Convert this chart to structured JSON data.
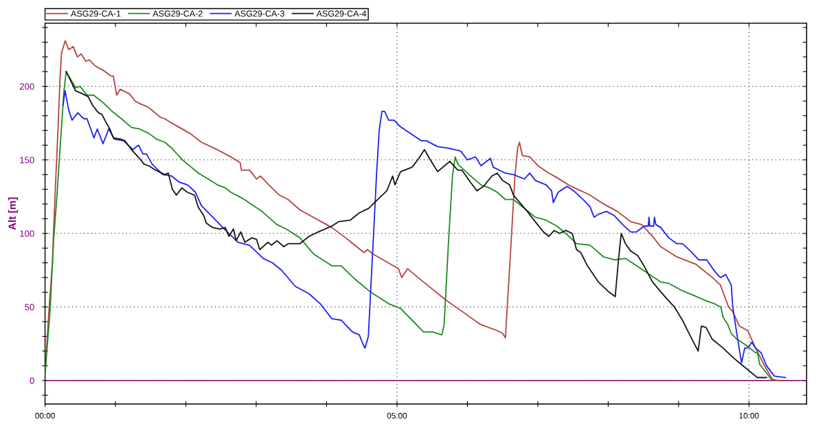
{
  "chart_data": {
    "type": "line",
    "ylabel": "Alt [m]",
    "xlim": [
      0,
      10.82
    ],
    "ylim": [
      -16,
      243
    ],
    "xticks": [
      {
        "value": 0,
        "label": "00:00"
      },
      {
        "value": 1,
        "label": null
      },
      {
        "value": 2,
        "label": null
      },
      {
        "value": 3,
        "label": null
      },
      {
        "value": 4,
        "label": null
      },
      {
        "value": 5,
        "label": "05:00"
      },
      {
        "value": 6,
        "label": null
      },
      {
        "value": 7,
        "label": null
      },
      {
        "value": 8,
        "label": null
      },
      {
        "value": 9,
        "label": null
      },
      {
        "value": 10,
        "label": "10:00"
      }
    ],
    "yticks": [
      {
        "value": -10,
        "label": null
      },
      0,
      {
        "value": 10,
        "label": null
      },
      {
        "value": 20,
        "label": null
      },
      {
        "value": 30,
        "label": null
      },
      {
        "value": 40,
        "label": null
      },
      50,
      {
        "value": 60,
        "label": null
      },
      {
        "value": 70,
        "label": null
      },
      {
        "value": 80,
        "label": null
      },
      {
        "value": 90,
        "label": null
      },
      100,
      {
        "value": 110,
        "label": null
      },
      {
        "value": 120,
        "label": null
      },
      {
        "value": 130,
        "label": null
      },
      {
        "value": 140,
        "label": null
      },
      150,
      {
        "value": 160,
        "label": null
      },
      {
        "value": 170,
        "label": null
      },
      {
        "value": 180,
        "label": null
      },
      {
        "value": 190,
        "label": null
      },
      200,
      {
        "value": 210,
        "label": null
      },
      {
        "value": 220,
        "label": null
      },
      {
        "value": 230,
        "label": null
      },
      {
        "value": 240,
        "label": null
      }
    ],
    "grid": true,
    "legend": "top left",
    "ref_lines": [
      {
        "axis": "y",
        "value": 0,
        "color": "#800080"
      }
    ],
    "series": [
      {
        "name": "ASG29-CA-1",
        "color": "#b4423e",
        "x": [
          0,
          0.056,
          0.105,
          0.12,
          0.154,
          0.186,
          0.211,
          0.235,
          0.287,
          0.336,
          0.4,
          0.46,
          0.514,
          0.58,
          0.628,
          0.71,
          0.823,
          0.937,
          0.97,
          1.018,
          1.067,
          1.197,
          1.279,
          1.36,
          1.458,
          1.539,
          1.636,
          1.7,
          1.8,
          2.06,
          2.22,
          2.445,
          2.638,
          2.677,
          2.773,
          2.79,
          2.907,
          3.004,
          3.06,
          3.18,
          3.33,
          3.455,
          3.62,
          4.075,
          4.27,
          4.53,
          4.58,
          4.66,
          5.02,
          5.067,
          5.15,
          5.376,
          5.685,
          5.864,
          6.19,
          6.42,
          6.5,
          6.54,
          6.62,
          6.675,
          6.714,
          6.74,
          6.78,
          6.887,
          7.003,
          7.157,
          7.27,
          7.435,
          7.743,
          7.936,
          8.129,
          8.32,
          8.476,
          8.63,
          8.746,
          8.977,
          9.247,
          9.479,
          9.594,
          9.71,
          9.767,
          9.864,
          9.98,
          10.095,
          10.21,
          10.33,
          10.4,
          10.52
        ],
        "values": [
          5,
          48,
          80,
          100,
          139,
          173,
          204,
          223,
          231,
          225,
          227,
          220,
          222,
          217,
          218,
          214,
          211,
          207,
          207,
          194,
          198,
          195,
          190,
          188,
          186,
          183,
          179,
          178,
          175,
          168,
          162,
          157,
          152,
          151,
          148,
          143,
          143,
          137,
          139,
          133,
          126,
          123,
          116,
          104,
          97,
          87,
          89,
          86,
          76,
          70,
          76,
          67,
          55,
          49,
          38,
          34,
          32,
          29,
          93,
          139,
          158,
          162,
          153,
          152,
          146,
          141,
          138,
          133,
          126,
          120,
          115,
          108,
          106,
          98,
          91,
          84,
          79,
          70,
          65,
          50,
          47,
          37,
          34,
          22,
          11,
          1,
          0,
          0
        ]
      },
      {
        "name": "ASG29-CA-2",
        "color": "#1f8a1f",
        "x": [
          0,
          0.072,
          0.121,
          0.17,
          0.202,
          0.235,
          0.267,
          0.3,
          0.433,
          0.498,
          0.596,
          0.69,
          0.823,
          0.953,
          1.084,
          1.23,
          1.343,
          1.474,
          1.587,
          1.7,
          1.8,
          1.95,
          2.18,
          2.45,
          2.56,
          2.638,
          2.8,
          3.08,
          3.294,
          3.425,
          3.62,
          3.815,
          4.075,
          4.206,
          4.4,
          4.628,
          4.889,
          5.05,
          5.214,
          5.376,
          5.506,
          5.636,
          5.67,
          5.73,
          5.788,
          5.826,
          5.866,
          6.0,
          6.193,
          6.31,
          6.424,
          6.54,
          6.655,
          6.81,
          6.964,
          7.12,
          7.27,
          7.396,
          7.55,
          7.743,
          7.936,
          8.09,
          8.245,
          8.437,
          8.59,
          8.746,
          8.86,
          9.055,
          9.209,
          9.4,
          9.517,
          9.6,
          9.633,
          9.7,
          9.748,
          9.83,
          9.96,
          10.09,
          10.12,
          10.153,
          10.25,
          10.33
        ],
        "values": [
          4,
          48,
          95,
          126,
          150,
          173,
          196,
          210,
          199,
          200,
          194,
          194,
          189,
          183,
          178,
          172,
          171,
          168,
          164,
          162,
          158,
          150,
          141,
          133,
          131,
          128,
          124,
          115,
          106,
          103,
          97,
          86,
          78,
          78,
          69,
          60,
          52,
          49,
          41,
          33,
          33,
          31,
          38,
          93,
          139,
          152,
          147,
          141,
          133,
          131,
          128,
          123,
          123,
          117,
          111,
          109,
          105,
          100,
          93,
          92,
          84,
          82,
          83,
          77,
          72,
          67,
          66,
          61,
          58,
          54,
          52,
          50,
          43,
          38,
          32,
          28,
          24,
          19,
          19,
          11,
          5,
          0
        ]
      },
      {
        "name": "ASG29-CA-3",
        "color": "#1f1ff0",
        "x": [
          0.254,
          0.285,
          0.336,
          0.384,
          0.466,
          0.547,
          0.596,
          0.694,
          0.742,
          0.823,
          0.905,
          0.986,
          1.116,
          1.246,
          1.328,
          1.392,
          1.441,
          1.523,
          1.674,
          1.8,
          1.9,
          2.026,
          2.137,
          2.22,
          2.384,
          2.547,
          2.742,
          2.904,
          3.1,
          3.23,
          3.36,
          3.555,
          3.75,
          3.913,
          4.075,
          4.206,
          4.368,
          4.465,
          4.514,
          4.546,
          4.593,
          4.63,
          4.67,
          4.708,
          4.747,
          4.786,
          4.824,
          4.882,
          4.959,
          5.036,
          5.19,
          5.344,
          5.42,
          5.577,
          5.73,
          5.905,
          6.0,
          6.116,
          6.193,
          6.328,
          6.367,
          6.54,
          6.655,
          6.81,
          6.887,
          6.964,
          7.12,
          7.196,
          7.22,
          7.29,
          7.32,
          7.416,
          7.51,
          7.666,
          7.743,
          7.8,
          7.86,
          7.974,
          8.09,
          8.206,
          8.32,
          8.4,
          8.514,
          8.57,
          8.58,
          8.59,
          8.647,
          8.657,
          8.677,
          8.746,
          8.86,
          8.977,
          9.055,
          9.17,
          9.286,
          9.4,
          9.517,
          9.594,
          9.67,
          9.748,
          9.77,
          9.83,
          9.895,
          9.94,
          9.98,
          10.04,
          10.095,
          10.17,
          10.25,
          10.36,
          10.52
        ],
        "values": [
          187,
          197,
          184,
          177,
          182,
          178,
          178,
          165,
          171,
          161,
          171,
          164,
          163,
          157,
          160,
          154,
          154,
          147,
          140,
          139,
          135,
          133,
          128,
          119,
          111,
          103,
          94,
          92,
          83,
          80,
          75,
          64,
          59,
          52,
          42,
          41,
          33,
          31,
          25,
          22,
          30,
          65,
          102,
          139,
          170,
          183,
          183,
          177,
          177,
          173,
          168,
          163,
          163,
          159,
          158,
          156,
          150,
          152,
          146,
          151,
          145,
          141,
          140,
          137,
          141,
          136,
          133,
          129,
          121,
          128,
          129,
          132,
          129,
          122,
          118,
          111,
          113,
          115,
          112,
          106,
          101,
          101,
          105,
          105,
          111,
          105,
          105,
          111,
          106,
          104,
          97,
          93,
          93,
          88,
          82,
          82,
          74,
          70,
          72,
          65,
          50,
          31,
          12,
          22,
          22,
          26,
          22,
          19,
          10,
          3,
          2
        ]
      },
      {
        "name": "ASG29-CA-4",
        "color": "#141414",
        "x": [
          0.3,
          0.352,
          0.433,
          0.53,
          0.612,
          0.677,
          0.758,
          0.807,
          0.872,
          0.921,
          0.97,
          1.084,
          1.133,
          1.246,
          1.343,
          1.409,
          1.474,
          1.572,
          1.7,
          1.751,
          1.809,
          1.866,
          1.943,
          2.02,
          2.124,
          2.175,
          2.255,
          2.29,
          2.384,
          2.484,
          2.56,
          2.612,
          2.676,
          2.715,
          2.78,
          2.84,
          2.937,
          3.004,
          3.05,
          3.166,
          3.217,
          3.295,
          3.392,
          3.455,
          3.523,
          3.62,
          3.75,
          3.88,
          4.075,
          4.173,
          4.335,
          4.465,
          4.596,
          4.726,
          4.856,
          4.938,
          4.97,
          5.05,
          5.214,
          5.31,
          5.39,
          5.474,
          5.577,
          5.75,
          5.864,
          5.923,
          6.04,
          6.135,
          6.23,
          6.347,
          6.424,
          6.5,
          6.6,
          6.655,
          6.85,
          6.964,
          7.08,
          7.157,
          7.234,
          7.31,
          7.396,
          7.49,
          7.55,
          7.61,
          7.705,
          7.86,
          8.014,
          8.1,
          8.148,
          8.186,
          8.245,
          8.32,
          8.418,
          8.496,
          8.63,
          8.824,
          8.94,
          9.055,
          9.17,
          9.278,
          9.324,
          9.39,
          9.479,
          9.633,
          9.788,
          9.94,
          10.095,
          10.115,
          10.25
        ],
        "values": [
          210,
          205,
          197,
          195,
          193,
          187,
          182,
          181,
          175,
          171,
          165,
          164,
          163,
          156,
          151,
          147,
          146,
          143,
          140,
          141,
          130,
          126,
          131,
          128,
          126,
          118,
          112,
          107,
          104,
          103,
          104,
          98,
          103,
          95,
          101,
          94,
          97,
          96,
          89,
          94,
          92,
          95,
          91,
          93,
          93,
          93,
          98,
          101,
          105,
          108,
          109,
          114,
          117,
          123,
          129,
          139,
          133,
          142,
          145,
          151,
          157,
          150,
          142,
          149,
          143,
          143,
          135,
          129,
          132,
          139,
          141,
          136,
          133,
          126,
          115,
          108,
          101,
          98,
          102,
          100,
          102,
          100,
          89,
          87,
          78,
          67,
          60,
          57,
          83,
          100,
          93,
          88,
          85,
          79,
          67,
          56,
          50,
          41,
          30,
          20,
          37,
          36,
          28,
          22,
          15,
          9,
          3,
          2,
          2
        ]
      }
    ]
  }
}
